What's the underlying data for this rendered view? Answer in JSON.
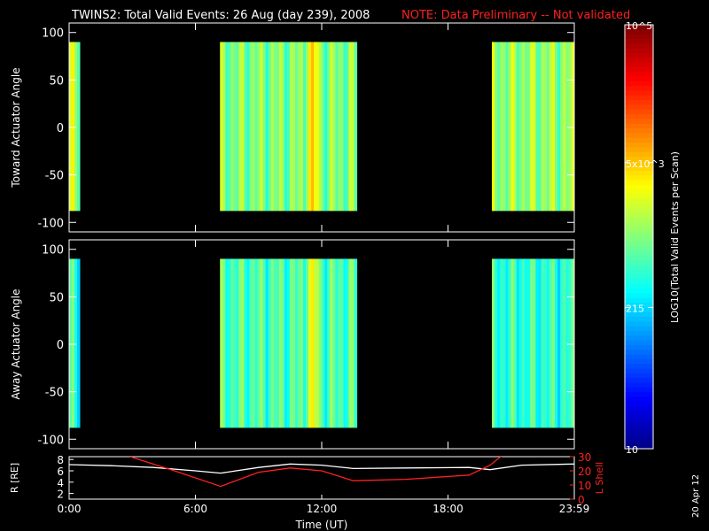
{
  "chart_data": [
    {
      "type": "heatmap",
      "panel": "toward",
      "ylabel": "Toward Actuator Angle",
      "ylim": [
        -110,
        110
      ],
      "yticks": [
        100,
        50,
        0,
        -50,
        -100
      ],
      "xlim_hours": [
        0,
        24
      ],
      "segments": [
        {
          "start": "00:00",
          "end": "00:03",
          "angle_range": [
            -88,
            90
          ],
          "log_level": 0.55
        },
        {
          "start": "07:10",
          "end": "13:40",
          "angle_range": [
            -88,
            90
          ],
          "log_level": 0.5
        },
        {
          "start": "20:05",
          "end": "23:59",
          "angle_range": [
            -88,
            90
          ],
          "log_level": 0.52
        }
      ],
      "colorbar": {
        "label": "LOG10(Total Valid Events per Scan)",
        "min": 10,
        "max": 100000,
        "ticks": [
          "10",
          "215",
          "5x10^3",
          "10^5"
        ]
      }
    },
    {
      "type": "heatmap",
      "panel": "away",
      "ylabel": "Away Actuator Angle",
      "ylim": [
        -110,
        110
      ],
      "yticks": [
        100,
        50,
        0,
        -50,
        -100
      ],
      "xlim_hours": [
        0,
        24
      ],
      "segments": [
        {
          "start": "00:00",
          "end": "00:03",
          "angle_range": [
            -88,
            90
          ],
          "log_level": 0.42
        },
        {
          "start": "07:10",
          "end": "13:40",
          "angle_range": [
            -88,
            90
          ],
          "log_level": 0.45
        },
        {
          "start": "20:05",
          "end": "23:59",
          "angle_range": [
            -88,
            90
          ],
          "log_level": 0.42
        }
      ]
    },
    {
      "type": "line",
      "panel": "orbit",
      "ylabel_left": "R [RE]",
      "ylabel_right": "L Shell",
      "ylim_left": [
        1,
        8.5
      ],
      "ylim_right": [
        0,
        30
      ],
      "yticks_left": [
        2,
        4,
        6,
        8
      ],
      "yticks_right": [
        0,
        10,
        20,
        30
      ],
      "x_ticks": [
        "0:00",
        "6:00",
        "12:00",
        "18:00",
        "23:59"
      ],
      "xlabel": "Time (UT)",
      "series": [
        {
          "color": "#ffffff",
          "x_hours": [
            0,
            2,
            4,
            6,
            7.2,
            9,
            10.5,
            12,
            13.5,
            16,
            19,
            20,
            21.5,
            24
          ],
          "values": [
            7.1,
            6.9,
            6.6,
            6.0,
            5.6,
            6.6,
            7.2,
            7.0,
            6.4,
            6.5,
            6.6,
            6.2,
            7.0,
            7.2
          ]
        },
        {
          "color": "#ff2020",
          "axis": "right",
          "x_hours": [
            2.9,
            5,
            7.2,
            9,
            10.5,
            12,
            13.5,
            16,
            19,
            20,
            20.5,
            21.5
          ],
          "values": [
            30,
            20,
            9,
            19,
            22,
            20,
            13,
            14,
            17,
            24,
            30,
            35
          ]
        }
      ]
    }
  ],
  "header": {
    "title": "TWINS2: Total Valid Events: 26 Aug (day 239), 2008",
    "note": "NOTE: Data Preliminary -- Not validated"
  },
  "colors": {
    "note": "#ff2020",
    "lshell": "#ff2020",
    "radius": "#ffffff"
  },
  "stamp": "20 Apr 12"
}
